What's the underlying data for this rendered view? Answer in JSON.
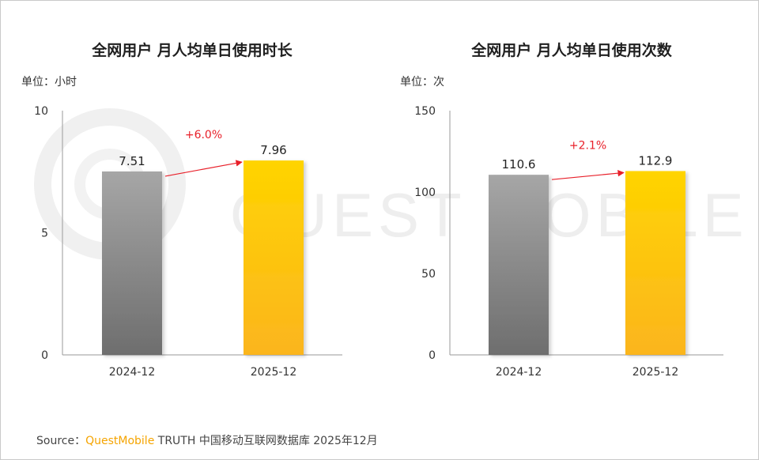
{
  "watermark": "QUEST MOBILE",
  "source": {
    "prefix": "Source：",
    "brand": "QuestMobile",
    "rest": " TRUTH 中国移动互联网数据库 2025年12月"
  },
  "colors": {
    "bar_2024_top": "#a6a6a6",
    "bar_2024_bottom": "#6e6e6e",
    "bar_2025_top": "#ffd400",
    "bar_2025_bottom": "#fbb51e",
    "growth": "#e8202a"
  },
  "chart_data": [
    {
      "type": "bar",
      "title": "全网用户 月人均单日使用时长",
      "unit_label": "单位：小时",
      "categories": [
        "2024-12",
        "2025-12"
      ],
      "values": [
        7.51,
        7.96
      ],
      "value_labels": [
        "7.51",
        "7.96"
      ],
      "ylim": [
        0,
        10
      ],
      "yticks": [
        0,
        5,
        10
      ],
      "growth_label": "+6.0%",
      "grid": false
    },
    {
      "type": "bar",
      "title": "全网用户 月人均单日使用次数",
      "unit_label": "单位：次",
      "categories": [
        "2024-12",
        "2025-12"
      ],
      "values": [
        110.6,
        112.9
      ],
      "value_labels": [
        "110.6",
        "112.9"
      ],
      "ylim": [
        0,
        150
      ],
      "yticks": [
        0,
        50,
        100,
        150
      ],
      "growth_label": "+2.1%",
      "grid": false
    }
  ]
}
